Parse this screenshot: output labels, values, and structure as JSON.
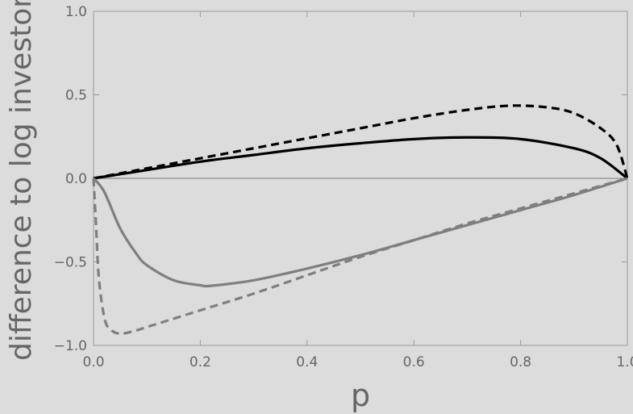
{
  "chart_data": {
    "type": "line",
    "title": "",
    "xlabel": "p",
    "ylabel": "difference to log investor",
    "xlim": [
      0,
      1
    ],
    "ylim": [
      -1,
      1
    ],
    "grid": false,
    "legend": "none",
    "xticks": [
      0.0,
      0.2,
      0.4,
      0.6,
      0.8,
      1.0
    ],
    "xtick_labels": [
      "0.0",
      "0.2",
      "0.4",
      "0.6",
      "0.8",
      "1.0"
    ],
    "yticks": [
      -1.0,
      -0.5,
      0.0,
      0.5,
      1.0
    ],
    "ytick_labels": [
      "−1.0",
      "−0.5",
      "0.0",
      "0.5",
      "1.0"
    ],
    "series": [
      {
        "color": "#000000",
        "dash": "dashed",
        "x": [
          0,
          0.05,
          0.1,
          0.2,
          0.3,
          0.4,
          0.5,
          0.6,
          0.7,
          0.78,
          0.85,
          0.9,
          0.95,
          0.98,
          1.0
        ],
        "y": [
          0,
          0.03,
          0.06,
          0.12,
          0.18,
          0.24,
          0.3,
          0.36,
          0.41,
          0.435,
          0.425,
          0.39,
          0.3,
          0.2,
          0
        ]
      },
      {
        "color": "#000000",
        "dash": "solid",
        "x": [
          0,
          0.05,
          0.1,
          0.2,
          0.3,
          0.4,
          0.5,
          0.6,
          0.7,
          0.8,
          0.9,
          0.95,
          1.0
        ],
        "y": [
          0,
          0.025,
          0.05,
          0.1,
          0.14,
          0.18,
          0.21,
          0.235,
          0.245,
          0.235,
          0.18,
          0.12,
          0
        ]
      },
      {
        "color": "#7f7f7f",
        "dash": "solid",
        "x": [
          0,
          0.02,
          0.05,
          0.08,
          0.1,
          0.15,
          0.2,
          0.22,
          0.3,
          0.4,
          0.5,
          0.6,
          0.7,
          0.8,
          0.9,
          1.0
        ],
        "y": [
          0,
          -0.08,
          -0.3,
          -0.45,
          -0.52,
          -0.61,
          -0.64,
          -0.643,
          -0.61,
          -0.54,
          -0.46,
          -0.37,
          -0.28,
          -0.19,
          -0.1,
          0
        ]
      },
      {
        "color": "#7f7f7f",
        "dash": "dashed",
        "x": [
          0,
          0.005,
          0.01,
          0.02,
          0.03,
          0.05,
          0.08,
          0.1,
          0.2,
          0.3,
          0.4,
          0.5,
          0.6,
          0.7,
          0.8,
          0.9,
          1.0
        ],
        "y": [
          0,
          -0.3,
          -0.6,
          -0.83,
          -0.9,
          -0.93,
          -0.91,
          -0.89,
          -0.79,
          -0.69,
          -0.58,
          -0.47,
          -0.37,
          -0.27,
          -0.18,
          -0.09,
          0
        ]
      }
    ]
  }
}
